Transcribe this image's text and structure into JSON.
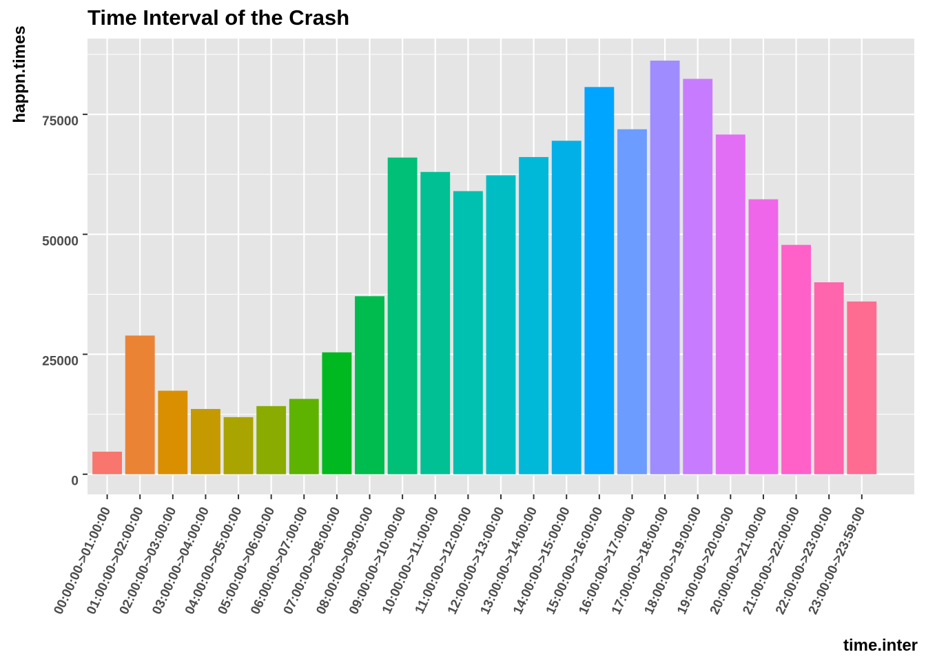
{
  "chart_data": {
    "type": "bar",
    "title": "Time Interval of the Crash",
    "xlabel": "time.inter",
    "ylabel": "happn.times",
    "ylim": [
      -4200,
      90800
    ],
    "yticks": [
      0,
      25000,
      50000,
      75000
    ],
    "ytick_labels": [
      "0",
      "25000",
      "50000",
      "75000"
    ],
    "grid": true,
    "legend": "none",
    "panel_background": "#e5e5e5",
    "grid_color": "#ffffff",
    "categories": [
      "00:00:00->01:00:00",
      "01:00:00->02:00:00",
      "02:00:00->03:00:00",
      "03:00:00->04:00:00",
      "04:00:00->05:00:00",
      "05:00:00->06:00:00",
      "06:00:00->07:00:00",
      "07:00:00->08:00:00",
      "08:00:00->09:00:00",
      "09:00:00->10:00:00",
      "10:00:00->11:00:00",
      "11:00:00->12:00:00",
      "12:00:00->13:00:00",
      "13:00:00->14:00:00",
      "14:00:00->15:00:00",
      "15:00:00->16:00:00",
      "16:00:00->17:00:00",
      "17:00:00->18:00:00",
      "18:00:00->19:00:00",
      "19:00:00->20:00:00",
      "20:00:00->21:00:00",
      "21:00:00->22:00:00",
      "22:00:00->23:00:00",
      "23:00:00->23:59:00"
    ],
    "values": [
      4700,
      28900,
      17400,
      13600,
      11900,
      14200,
      15700,
      25400,
      37100,
      66000,
      63000,
      59000,
      62300,
      66100,
      69500,
      80700,
      71900,
      86200,
      82400,
      70800,
      57300,
      47800,
      40000,
      36000
    ],
    "colors": [
      "#F8766D",
      "#EB8335",
      "#DA8F00",
      "#C49A00",
      "#A9A400",
      "#8AAB00",
      "#5EB300",
      "#00B81F",
      "#00BB4E",
      "#00BF76",
      "#00C094",
      "#00C0AF",
      "#00BDC4",
      "#00B8D7",
      "#00B0E7",
      "#00A5FF",
      "#6C9CFF",
      "#9F8CFF",
      "#C77CFF",
      "#E36EF6",
      "#F066EA",
      "#FF61C9",
      "#FF65AC",
      "#FF6C91"
    ]
  }
}
